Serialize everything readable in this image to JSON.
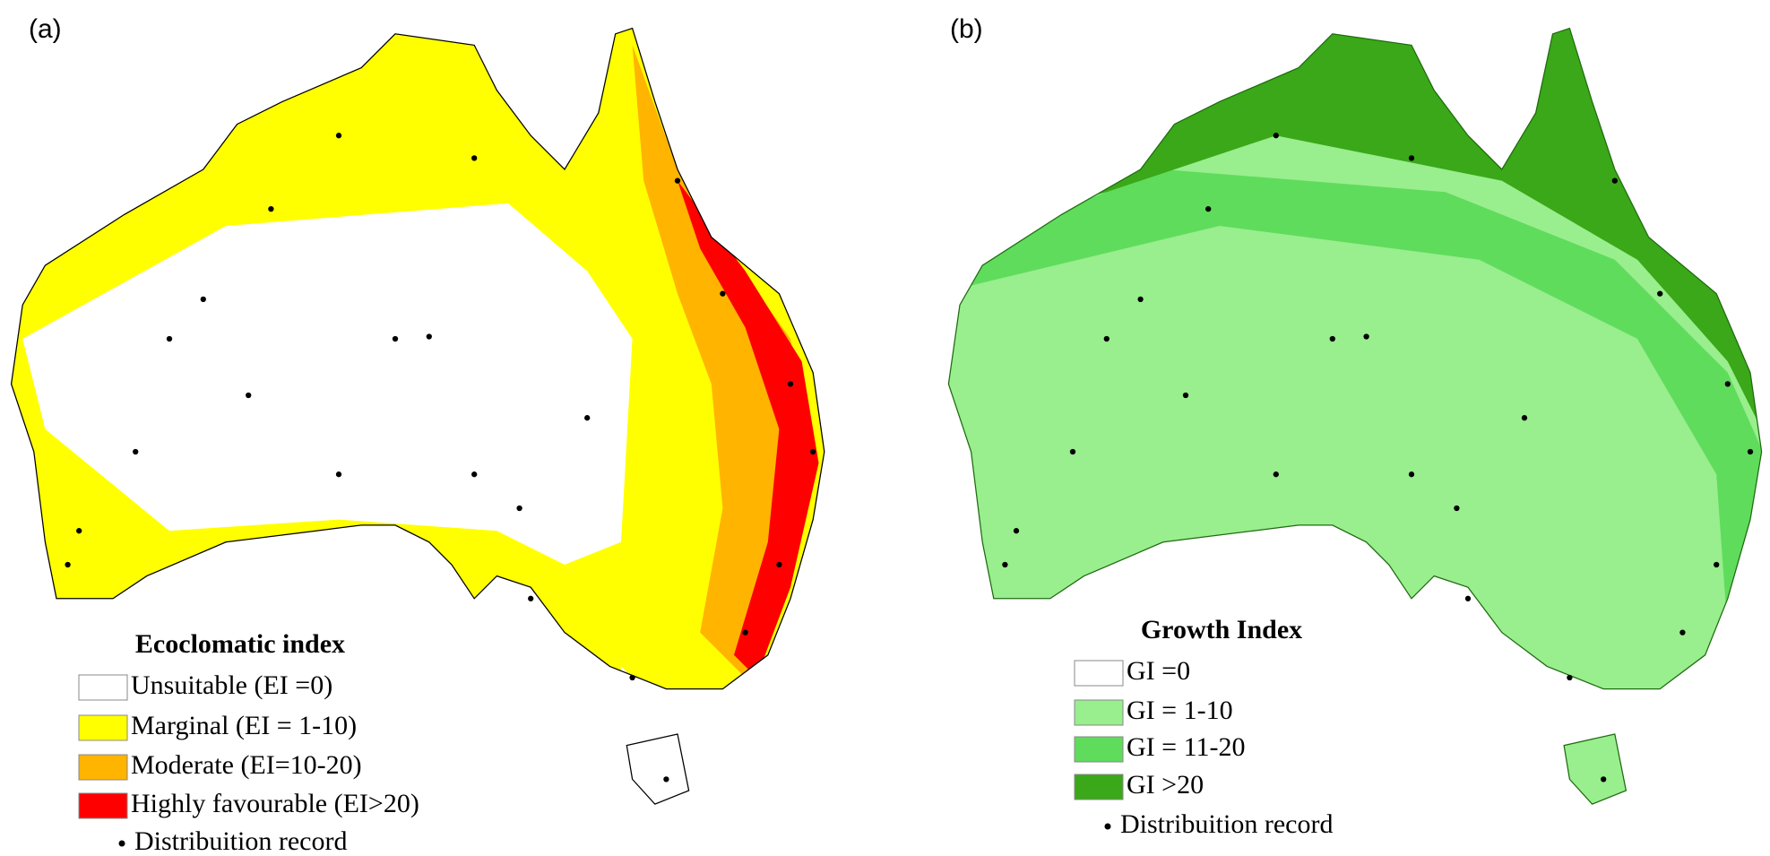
{
  "panels": [
    {
      "label": "(a)",
      "legend": {
        "title": "Ecoclomatic index",
        "items": [
          {
            "label": "Unsuitable (EI =0)",
            "color": "#ffffff"
          },
          {
            "label": "Marginal (EI = 1-10)",
            "color": "#ffff00"
          },
          {
            "label": "Moderate (EI=10-20)",
            "color": "#ffb400"
          },
          {
            "label": "Highly favourable (EI>20)",
            "color": "#ff0000"
          }
        ],
        "record": "Distribuition record"
      }
    },
    {
      "label": "(b)",
      "legend": {
        "title": "Growth Index",
        "items": [
          {
            "label": "GI =0",
            "color": "#ffffff"
          },
          {
            "label": "GI = 1-10",
            "color": "#99ee8e"
          },
          {
            "label": "GI = 11-20",
            "color": "#5fdc5c"
          },
          {
            "label": "GI >20",
            "color": "#3aa818"
          }
        ],
        "record": "Distribuition record"
      }
    }
  ]
}
